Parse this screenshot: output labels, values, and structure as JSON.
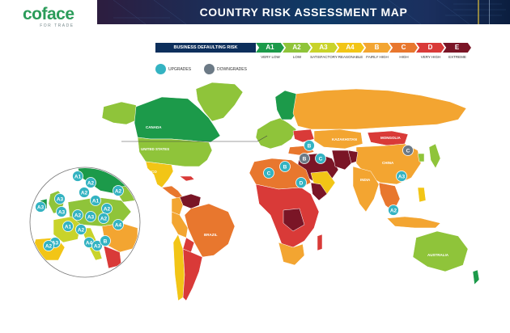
{
  "logo": {
    "word": "coface",
    "tagline": "FOR TRADE"
  },
  "title": "COUNTRY RISK ASSESSMENT MAP",
  "legend": {
    "heading": "BUSINESS DEFAULTING RISK",
    "levels": [
      {
        "code": "A1",
        "label": "VERY LOW",
        "color": "#1c9a4a"
      },
      {
        "code": "A2",
        "label": "LOW",
        "color": "#8fc43a"
      },
      {
        "code": "A3",
        "label": "SATISFACTORY",
        "color": "#c9d32a"
      },
      {
        "code": "A4",
        "label": "REASONABLE",
        "color": "#f2c516"
      },
      {
        "code": "B",
        "label": "FAIRLY HIGH",
        "color": "#f3a531"
      },
      {
        "code": "C",
        "label": "HIGH",
        "color": "#e8772e"
      },
      {
        "code": "D",
        "label": "VERY HIGH",
        "color": "#d93a38"
      },
      {
        "code": "E",
        "label": "EXTREME",
        "color": "#7a1526"
      }
    ]
  },
  "trends": [
    {
      "label": "UPGRADES",
      "color": "#34b3c2"
    },
    {
      "label": "DOWNGRADES",
      "color": "#6c7a86"
    }
  ],
  "map_labels": {
    "canada": "CANADA",
    "united_states": "UNITED STATES",
    "mexico": "MEXICO",
    "brazil": "BRAZIL",
    "kazakhstan": "KAZAKHSTAN",
    "mongolia": "MONGOLIA",
    "china": "CHINA",
    "india": "INDIA",
    "australia": "AUSTRALIA"
  },
  "markers": {
    "europe_inset": [
      {
        "code": "A1",
        "trend": "upgrade"
      },
      {
        "code": "A2",
        "trend": "upgrade"
      },
      {
        "code": "A2",
        "trend": "upgrade"
      },
      {
        "code": "A3",
        "trend": "upgrade"
      },
      {
        "code": "A3",
        "trend": "upgrade"
      },
      {
        "code": "A2",
        "trend": "upgrade"
      },
      {
        "code": "A1",
        "trend": "upgrade"
      },
      {
        "code": "A2",
        "trend": "upgrade"
      },
      {
        "code": "A3",
        "trend": "upgrade"
      },
      {
        "code": "A2",
        "trend": "upgrade"
      },
      {
        "code": "A3",
        "trend": "upgrade"
      },
      {
        "code": "A2",
        "trend": "upgrade"
      },
      {
        "code": "A1",
        "trend": "upgrade"
      },
      {
        "code": "A2",
        "trend": "upgrade"
      },
      {
        "code": "A4",
        "trend": "upgrade"
      },
      {
        "code": "A3",
        "trend": "upgrade"
      },
      {
        "code": "A2",
        "trend": "upgrade"
      },
      {
        "code": "A4",
        "trend": "upgrade"
      },
      {
        "code": "A3",
        "trend": "upgrade"
      },
      {
        "code": "B",
        "trend": "upgrade"
      }
    ],
    "world": [
      {
        "code": "B",
        "trend": "upgrade"
      },
      {
        "code": "C",
        "trend": "upgrade"
      },
      {
        "code": "D",
        "trend": "upgrade"
      },
      {
        "code": "C",
        "trend": "upgrade"
      },
      {
        "code": "B",
        "trend": "upgrade"
      },
      {
        "code": "A3",
        "trend": "upgrade"
      },
      {
        "code": "A2",
        "trend": "upgrade"
      },
      {
        "code": "C",
        "trend": "downgrade"
      },
      {
        "code": "B",
        "trend": "downgrade"
      }
    ]
  }
}
